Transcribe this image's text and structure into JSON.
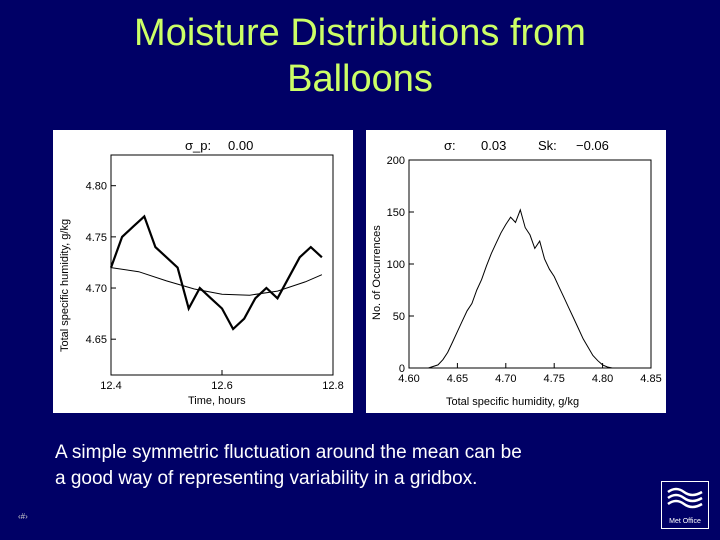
{
  "title_line1": "Moisture Distributions from",
  "title_line2": "Balloons",
  "caption_line1": "A simple symmetric fluctuation around the mean can be",
  "caption_line2": "a good way of representing variability in a gridbox.",
  "slide_number": "‹#›",
  "logo_text": "Met Office",
  "colors": {
    "background": "#000066",
    "title": "#ccff66",
    "caption": "#ffffff"
  },
  "chart_data": [
    {
      "type": "line",
      "panel_label": "σ_p:",
      "panel_label_value": "0.00",
      "xlabel": "Time, hours",
      "ylabel": "Total specific humidity, g/kg",
      "xlim": [
        12.4,
        12.8
      ],
      "ylim": [
        4.615,
        4.83
      ],
      "xticks": [
        12.4,
        12.6,
        12.8
      ],
      "xtick_labels": [
        "12.4",
        "12.6",
        "12.8"
      ],
      "yticks": [
        4.65,
        4.7,
        4.75,
        4.8
      ],
      "ytick_labels": [
        "4.65",
        "4.70",
        "4.75",
        "4.80"
      ],
      "series": [
        {
          "x": [
            12.4,
            12.42,
            12.44,
            12.46,
            12.48,
            12.5,
            12.52,
            12.54,
            12.56,
            12.58,
            12.6,
            12.62,
            12.64,
            12.66,
            12.68,
            12.7,
            12.72,
            12.74,
            12.76,
            12.78
          ],
          "values": [
            4.72,
            4.75,
            4.76,
            4.77,
            4.74,
            4.73,
            4.72,
            4.68,
            4.7,
            4.69,
            4.68,
            4.66,
            4.67,
            4.69,
            4.7,
            4.69,
            4.71,
            4.73,
            4.74,
            4.73
          ]
        },
        {
          "x": [
            12.4,
            12.45,
            12.5,
            12.55,
            12.6,
            12.65,
            12.7,
            12.75,
            12.78
          ],
          "values": [
            4.72,
            4.716,
            4.707,
            4.699,
            4.694,
            4.693,
            4.697,
            4.706,
            4.713
          ]
        }
      ]
    },
    {
      "type": "line",
      "panel_label": "σ:",
      "panel_label_value": "0.03",
      "skew_label": "Sk:",
      "skew_value": "−0.06",
      "xlabel": "Total specific humidity, g/kg",
      "ylabel": "No. of Occurrences",
      "xlim": [
        4.6,
        4.85
      ],
      "ylim": [
        0,
        200
      ],
      "xticks": [
        4.6,
        4.65,
        4.7,
        4.75,
        4.8,
        4.85
      ],
      "xtick_labels": [
        "4.60",
        "4.65",
        "4.70",
        "4.75",
        "4.80",
        "4.85"
      ],
      "yticks": [
        0,
        50,
        100,
        150,
        200
      ],
      "ytick_labels": [
        "0",
        "50",
        "100",
        "150",
        "200"
      ],
      "series": [
        {
          "x": [
            4.62,
            4.63,
            4.635,
            4.64,
            4.645,
            4.65,
            4.655,
            4.66,
            4.665,
            4.67,
            4.675,
            4.68,
            4.685,
            4.69,
            4.695,
            4.7,
            4.705,
            4.71,
            4.715,
            4.72,
            4.725,
            4.73,
            4.735,
            4.74,
            4.745,
            4.75,
            4.755,
            4.76,
            4.765,
            4.77,
            4.775,
            4.78,
            4.785,
            4.79,
            4.795,
            4.8,
            4.805,
            4.81
          ],
          "values": [
            0,
            3,
            8,
            15,
            25,
            35,
            45,
            55,
            62,
            75,
            85,
            98,
            110,
            120,
            130,
            138,
            145,
            140,
            152,
            135,
            128,
            115,
            122,
            105,
            95,
            88,
            78,
            68,
            58,
            48,
            38,
            28,
            20,
            12,
            7,
            3,
            1,
            0
          ]
        }
      ]
    }
  ]
}
